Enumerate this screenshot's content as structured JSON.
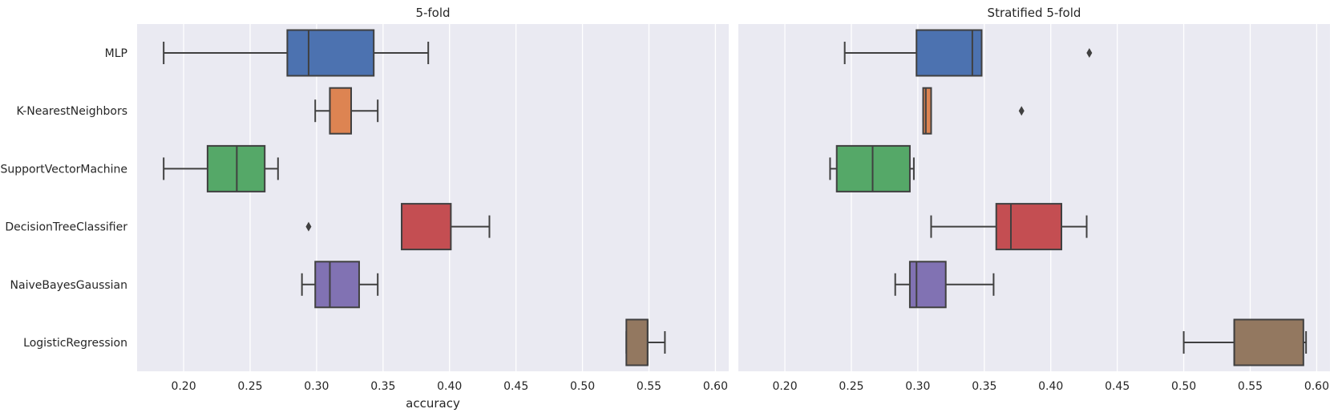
{
  "chart_data": [
    {
      "type": "box",
      "title": "5-fold",
      "xlabel": "accuracy",
      "ylabel": "",
      "xlim": [
        0.165,
        0.61
      ],
      "xticks": [
        "0.20",
        "0.25",
        "0.30",
        "0.35",
        "0.40",
        "0.45",
        "0.50",
        "0.55",
        "0.60"
      ],
      "grid": true,
      "series": [
        {
          "name": "MLP",
          "color": "#4c72b0",
          "whislo": 0.185,
          "q1": 0.278,
          "med": 0.294,
          "q3": 0.343,
          "whishi": 0.384,
          "fliers": []
        },
        {
          "name": "K-NearestNeighbors",
          "color": "#dd8452",
          "whislo": 0.299,
          "q1": 0.31,
          "med": 0.31,
          "q3": 0.326,
          "whishi": 0.346,
          "fliers": []
        },
        {
          "name": "SupportVectorMachine",
          "color": "#55a868",
          "whislo": 0.185,
          "q1": 0.218,
          "med": 0.24,
          "q3": 0.261,
          "whishi": 0.271,
          "fliers": []
        },
        {
          "name": "DecisionTreeClassifier",
          "color": "#c44e52",
          "whislo": 0.364,
          "q1": 0.364,
          "med": 0.364,
          "q3": 0.401,
          "whishi": 0.43,
          "fliers": [
            0.294
          ]
        },
        {
          "name": "NaiveBayesGaussian",
          "color": "#8172b3",
          "whislo": 0.289,
          "q1": 0.299,
          "med": 0.31,
          "q3": 0.332,
          "whishi": 0.346,
          "fliers": []
        },
        {
          "name": "LogisticRegression",
          "color": "#937860",
          "whislo": 0.533,
          "q1": 0.533,
          "med": 0.549,
          "q3": 0.549,
          "whishi": 0.562,
          "fliers": []
        }
      ]
    },
    {
      "type": "box",
      "title": "Stratified 5-fold",
      "xlabel": "",
      "ylabel": "",
      "xlim": [
        0.165,
        0.61
      ],
      "xticks": [
        "0.20",
        "0.25",
        "0.30",
        "0.35",
        "0.40",
        "0.45",
        "0.50",
        "0.55",
        "0.60"
      ],
      "grid": true,
      "series": [
        {
          "name": "MLP",
          "color": "#4c72b0",
          "whislo": 0.245,
          "q1": 0.299,
          "med": 0.341,
          "q3": 0.348,
          "whishi": 0.348,
          "fliers": [
            0.429
          ]
        },
        {
          "name": "K-NearestNeighbors",
          "color": "#dd8452",
          "whislo": 0.304,
          "q1": 0.304,
          "med": 0.306,
          "q3": 0.31,
          "whishi": 0.31,
          "fliers": [
            0.378
          ]
        },
        {
          "name": "SupportVectorMachine",
          "color": "#55a868",
          "whislo": 0.234,
          "q1": 0.239,
          "med": 0.266,
          "q3": 0.294,
          "whishi": 0.297,
          "fliers": []
        },
        {
          "name": "DecisionTreeClassifier",
          "color": "#c44e52",
          "whislo": 0.31,
          "q1": 0.359,
          "med": 0.37,
          "q3": 0.408,
          "whishi": 0.427,
          "fliers": []
        },
        {
          "name": "NaiveBayesGaussian",
          "color": "#8172b3",
          "whislo": 0.283,
          "q1": 0.294,
          "med": 0.299,
          "q3": 0.321,
          "whishi": 0.357,
          "fliers": []
        },
        {
          "name": "LogisticRegression",
          "color": "#937860",
          "whislo": 0.5,
          "q1": 0.538,
          "med": 0.538,
          "q3": 0.59,
          "whishi": 0.592,
          "fliers": []
        }
      ]
    }
  ]
}
